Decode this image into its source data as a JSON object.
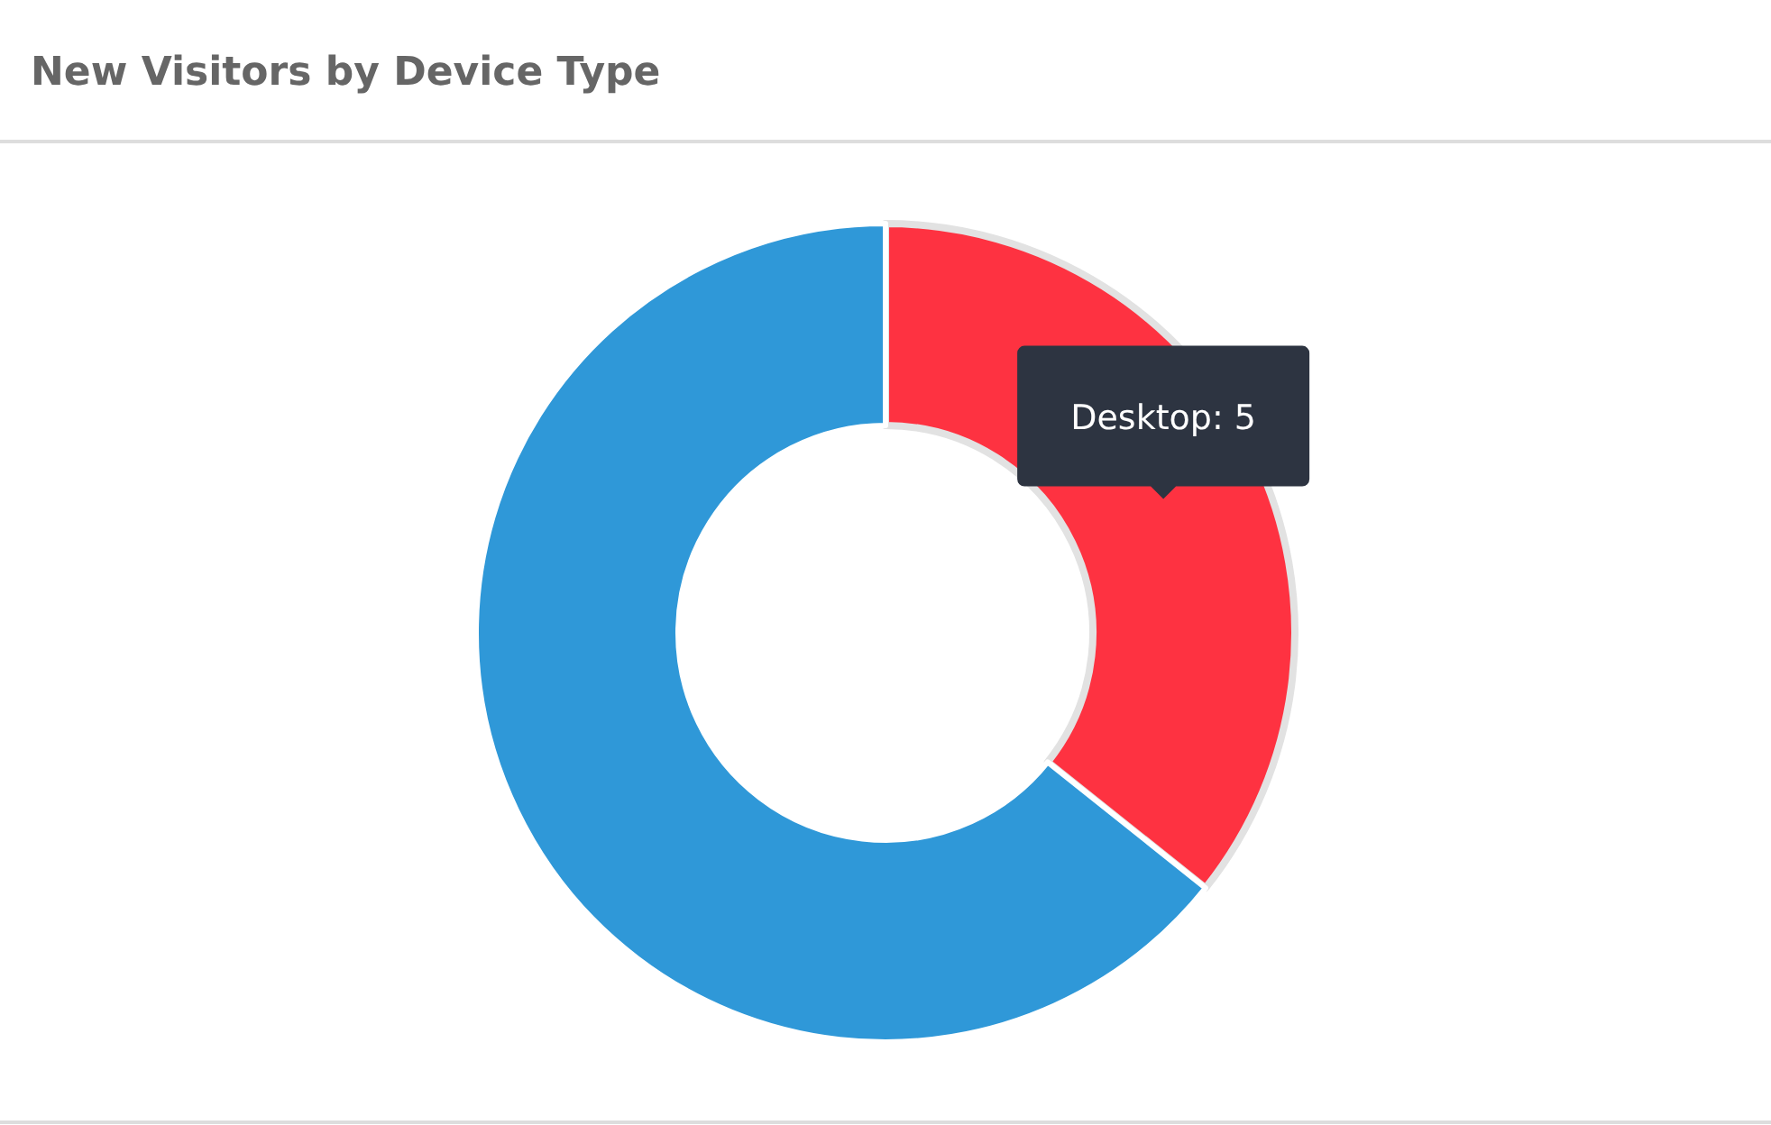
{
  "chart_data": {
    "type": "donut",
    "title": "New Visitors by Device Type",
    "categories": [
      "Desktop",
      null
    ],
    "values": [
      5,
      9
    ],
    "colors": [
      "#fe3241",
      "#2f98d8"
    ],
    "value_labels": [
      "5",
      null
    ]
  }
}
